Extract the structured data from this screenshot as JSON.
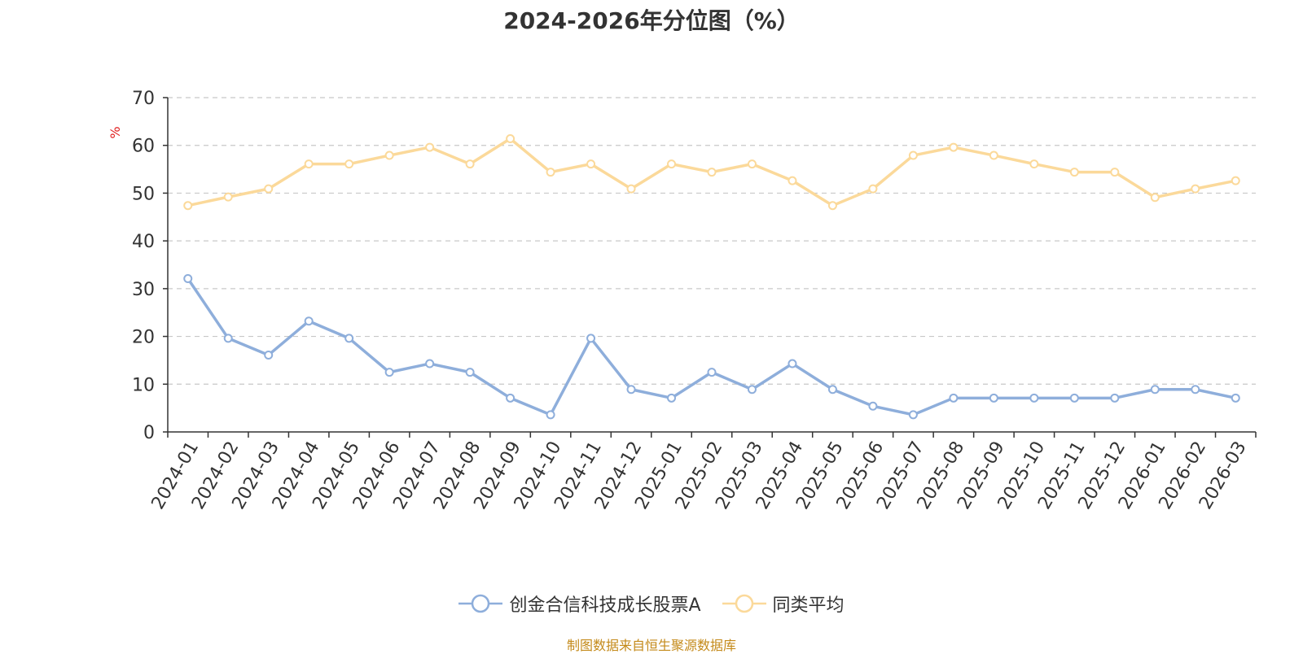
{
  "chart_data": {
    "type": "line",
    "title": "2024-2026年分位图（%）",
    "ylabel": "%",
    "xlabel": "",
    "ylim": [
      0,
      70
    ],
    "yticks": [
      0,
      10,
      20,
      30,
      40,
      50,
      60,
      70
    ],
    "grid": true,
    "legend_position": "bottom",
    "categories": [
      "2024-01",
      "2024-02",
      "2024-03",
      "2024-04",
      "2024-05",
      "2024-06",
      "2024-07",
      "2024-08",
      "2024-09",
      "2024-10",
      "2024-11",
      "2024-12",
      "2025-01",
      "2025-02",
      "2025-03",
      "2025-04",
      "2025-05",
      "2025-06",
      "2025-07",
      "2025-08",
      "2025-09",
      "2025-10",
      "2025-11",
      "2025-12",
      "2026-01",
      "2026-02",
      "2026-03"
    ],
    "series": [
      {
        "name": "创金合信科技成长股票A",
        "color": "#8eaedb",
        "values": [
          32.1,
          19.6,
          16.1,
          23.2,
          19.6,
          12.5,
          14.3,
          12.5,
          7.1,
          3.6,
          19.6,
          8.9,
          7.1,
          12.5,
          8.9,
          14.3,
          8.9,
          5.4,
          3.6,
          7.1,
          7.1,
          7.1,
          7.1,
          7.1,
          8.9,
          8.9,
          7.1
        ]
      },
      {
        "name": "同类平均",
        "color": "#fbd99a",
        "values": [
          47.4,
          49.2,
          50.9,
          56.1,
          56.1,
          57.9,
          59.6,
          56.1,
          61.4,
          54.4,
          56.1,
          50.9,
          56.1,
          54.4,
          56.1,
          52.6,
          47.4,
          50.9,
          57.9,
          59.6,
          57.9,
          56.1,
          54.4,
          54.4,
          49.1,
          50.9,
          52.6
        ]
      }
    ]
  },
  "source_note": "制图数据来自恒生聚源数据库"
}
